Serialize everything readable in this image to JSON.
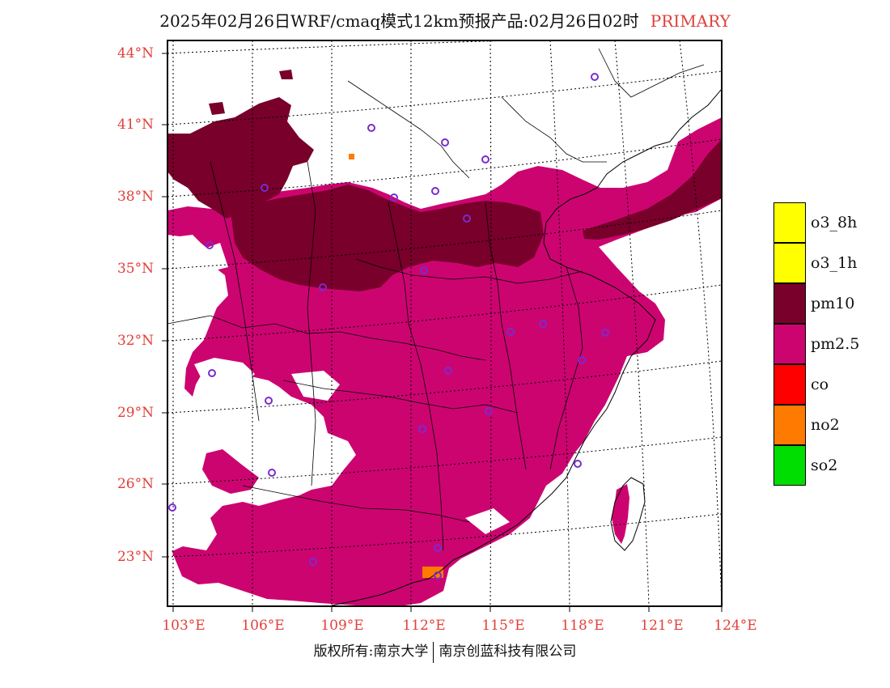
{
  "header": {
    "title": "2025年02月26日WRF/cmaq模式12km预报产品:02月26日02时",
    "tag": "PRIMARY"
  },
  "axes": {
    "lat_labels": [
      "44°N",
      "41°N",
      "38°N",
      "35°N",
      "32°N",
      "29°N",
      "26°N",
      "23°N"
    ],
    "lon_labels": [
      "103°E",
      "106°E",
      "109°E",
      "112°E",
      "115°E",
      "118°E",
      "121°E",
      "124°E"
    ]
  },
  "legend": {
    "items": [
      {
        "label": "o3_8h",
        "color": "#ffff00"
      },
      {
        "label": "o3_1h",
        "color": "#ffff00"
      },
      {
        "label": "pm10",
        "color": "#78002a"
      },
      {
        "label": "pm2.5",
        "color": "#cc0470"
      },
      {
        "label": "co",
        "color": "#ff0000"
      },
      {
        "label": "no2",
        "color": "#ff7a00"
      },
      {
        "label": "so2",
        "color": "#00dd00"
      }
    ]
  },
  "footer": {
    "left": "版权所有:南京大学",
    "right": "南京创蓝科技有限公司"
  },
  "colors": {
    "pm25": "#cc0470",
    "pm10": "#78002a",
    "no2": "#ff7a00",
    "station": "#7a2bd0",
    "label": "#e0403a"
  }
}
